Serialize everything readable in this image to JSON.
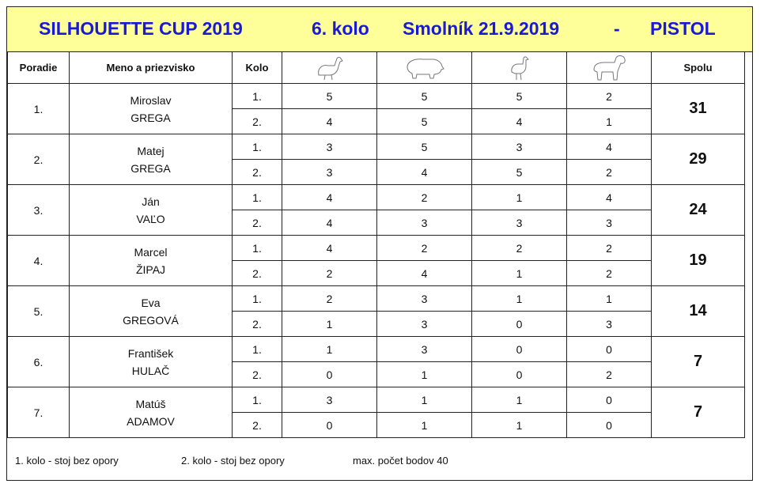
{
  "header": {
    "competition": "SILHOUETTE  CUP  2019",
    "round": "6. kolo",
    "place_date": "Smolník   21.9.2019",
    "dash": "-",
    "discipline": "PISTOL"
  },
  "columns": {
    "rank": "Poradie",
    "name": "Meno a priezvisko",
    "round": "Kolo",
    "targets": [
      "chicken-icon",
      "pig-icon",
      "turkey-icon",
      "ram-icon"
    ],
    "total": "Spolu"
  },
  "rows": [
    {
      "rank": "1.",
      "first": "Miroslav",
      "last": "GREGA",
      "r1": {
        "label": "1.",
        "scores": [
          "5",
          "5",
          "5",
          "2"
        ]
      },
      "r2": {
        "label": "2.",
        "scores": [
          "4",
          "5",
          "4",
          "1"
        ]
      },
      "total": "31"
    },
    {
      "rank": "2.",
      "first": "Matej",
      "last": "GREGA",
      "r1": {
        "label": "1.",
        "scores": [
          "3",
          "5",
          "3",
          "4"
        ]
      },
      "r2": {
        "label": "2.",
        "scores": [
          "3",
          "4",
          "5",
          "2"
        ]
      },
      "total": "29"
    },
    {
      "rank": "3.",
      "first": "Ján",
      "last": "VAĽO",
      "r1": {
        "label": "1.",
        "scores": [
          "4",
          "2",
          "1",
          "4"
        ]
      },
      "r2": {
        "label": "2.",
        "scores": [
          "4",
          "3",
          "3",
          "3"
        ]
      },
      "total": "24"
    },
    {
      "rank": "4.",
      "first": "Marcel",
      "last": "ŽIPAJ",
      "r1": {
        "label": "1.",
        "scores": [
          "4",
          "2",
          "2",
          "2"
        ]
      },
      "r2": {
        "label": "2.",
        "scores": [
          "2",
          "4",
          "1",
          "2"
        ]
      },
      "total": "19"
    },
    {
      "rank": "5.",
      "first": "Eva",
      "last": "GREGOVÁ",
      "r1": {
        "label": "1.",
        "scores": [
          "2",
          "3",
          "1",
          "1"
        ]
      },
      "r2": {
        "label": "2.",
        "scores": [
          "1",
          "3",
          "0",
          "3"
        ]
      },
      "total": "14"
    },
    {
      "rank": "6.",
      "first": "František",
      "last": "HULAČ",
      "r1": {
        "label": "1.",
        "scores": [
          "1",
          "3",
          "0",
          "0"
        ]
      },
      "r2": {
        "label": "2.",
        "scores": [
          "0",
          "1",
          "0",
          "2"
        ]
      },
      "total": "7"
    },
    {
      "rank": "7.",
      "first": "Matúš",
      "last": "ADAMOV",
      "r1": {
        "label": "1.",
        "scores": [
          "3",
          "1",
          "1",
          "0"
        ]
      },
      "r2": {
        "label": "2.",
        "scores": [
          "0",
          "1",
          "1",
          "0"
        ]
      },
      "total": "7"
    }
  ],
  "footer": {
    "note1": "1. kolo  -  stoj bez opory",
    "note2": "2. kolo  -  stoj bez opory",
    "note3": "max. počet bodov  40"
  }
}
